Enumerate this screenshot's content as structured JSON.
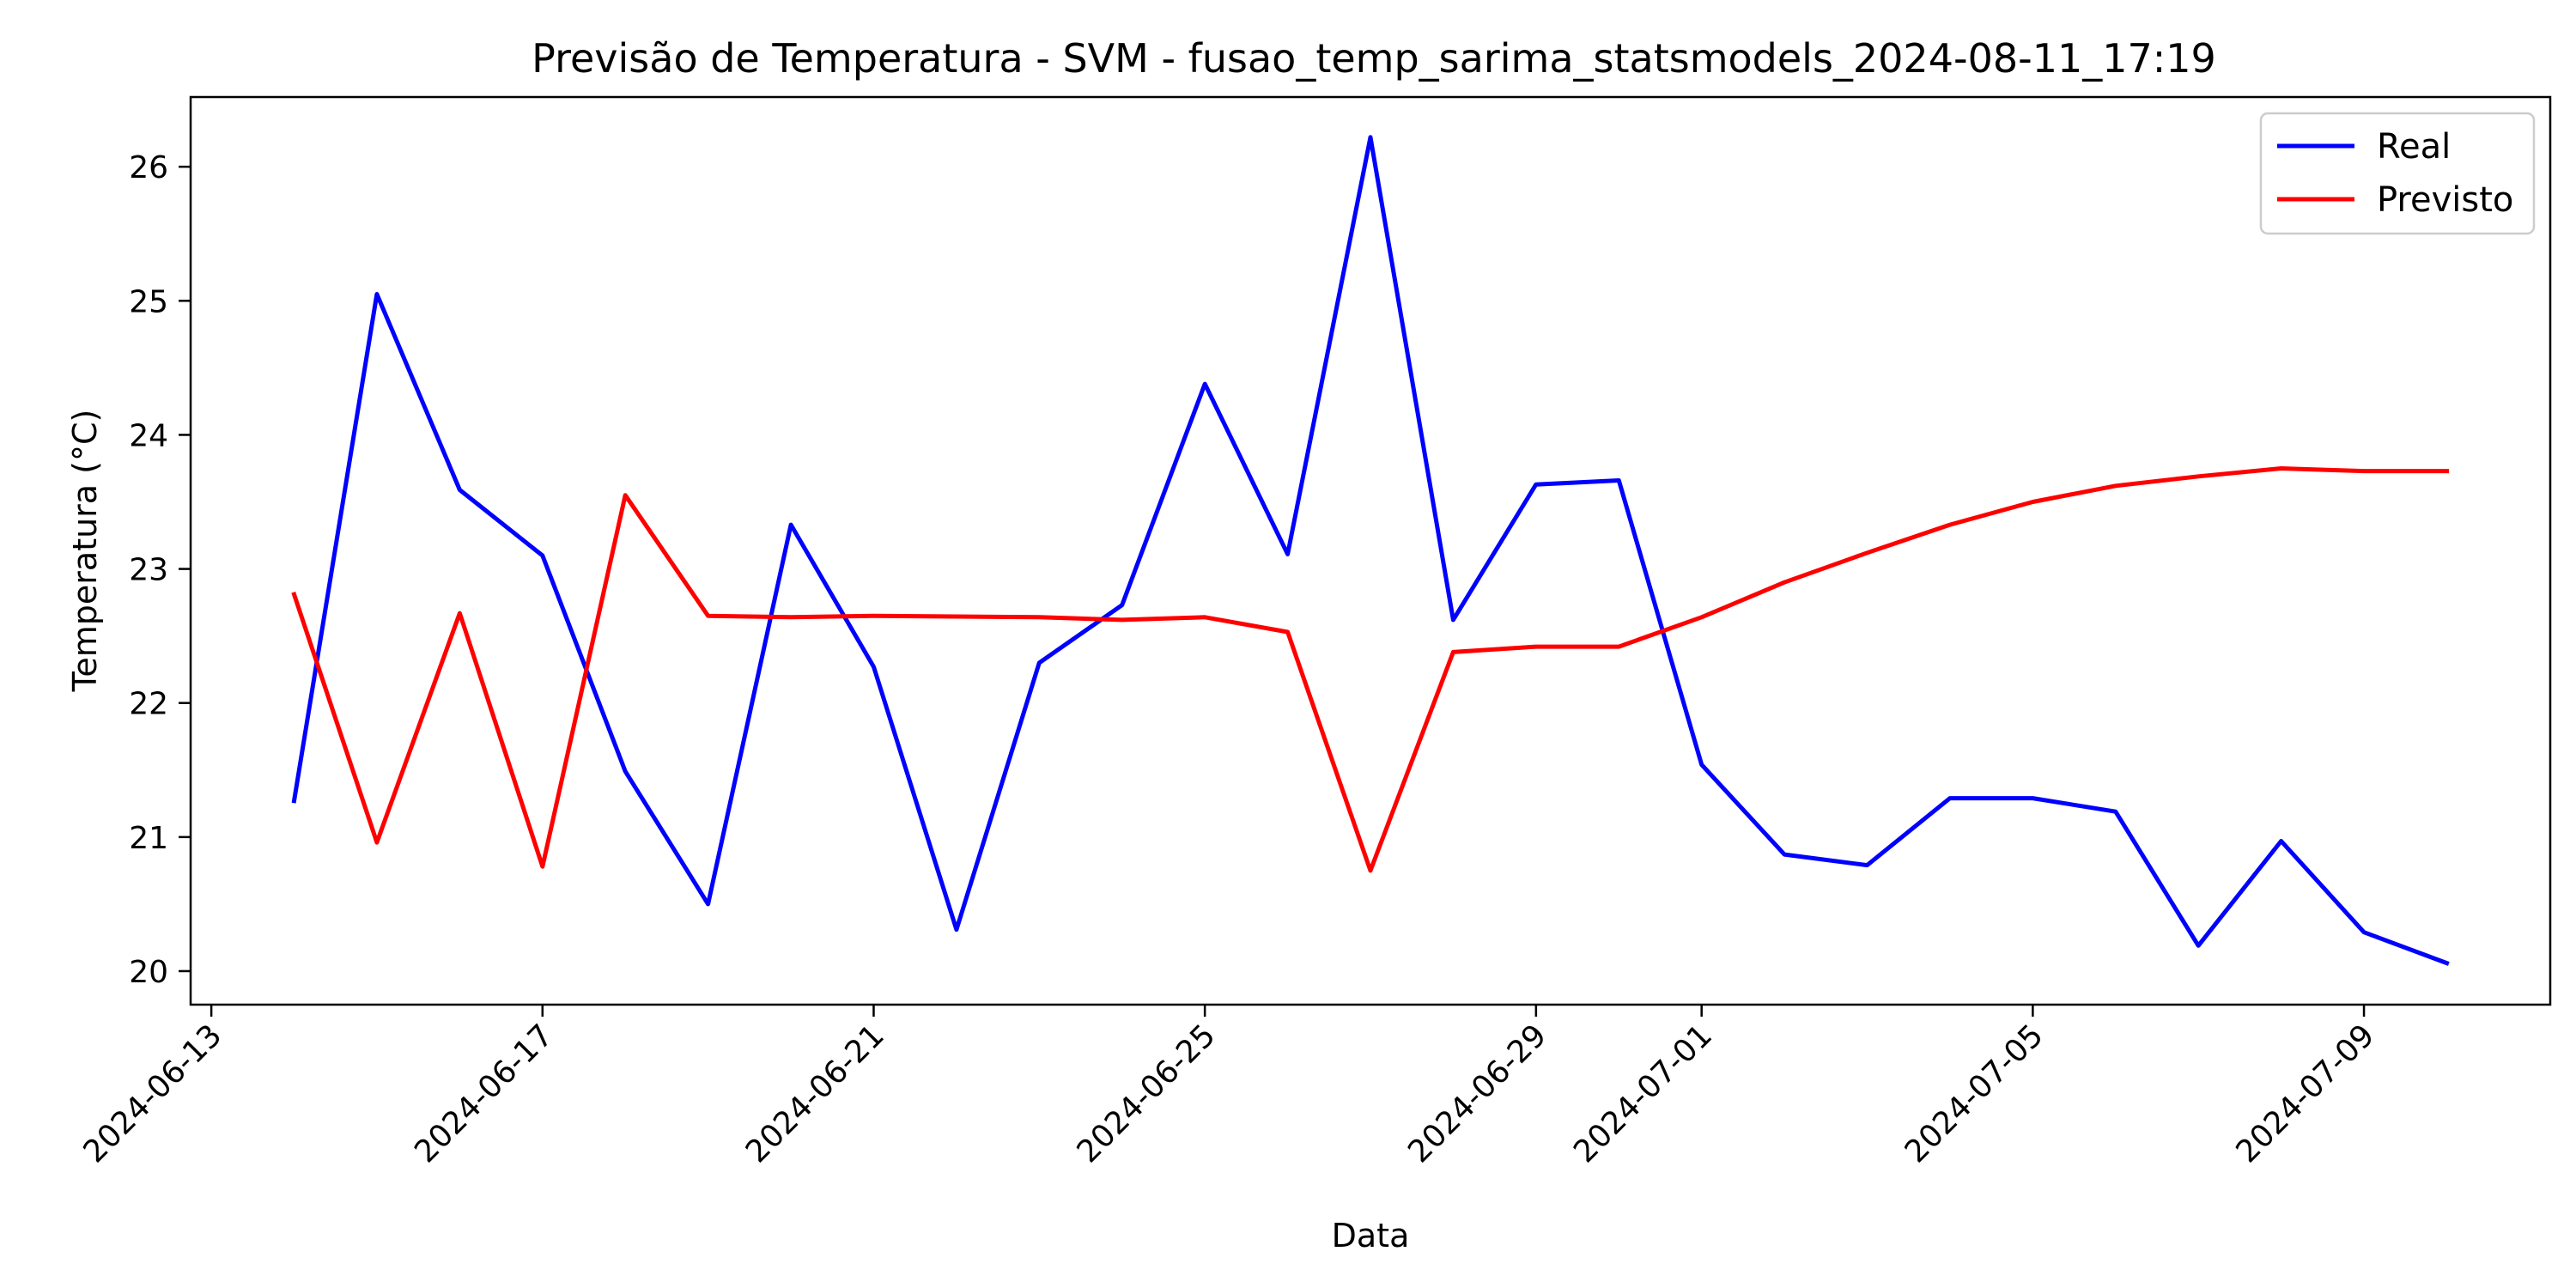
{
  "chart_data": {
    "type": "line",
    "title": "Previsão de Temperatura - SVM - fusao_temp_sarima_statsmodels_2024-08-11_17:19",
    "xlabel": "Data",
    "ylabel": "Temperatura (°C)",
    "x": [
      "2024-06-14",
      "2024-06-15",
      "2024-06-16",
      "2024-06-17",
      "2024-06-18",
      "2024-06-19",
      "2024-06-20",
      "2024-06-21",
      "2024-06-22",
      "2024-06-23",
      "2024-06-24",
      "2024-06-25",
      "2024-06-26",
      "2024-06-27",
      "2024-06-28",
      "2024-06-29",
      "2024-06-30",
      "2024-07-01",
      "2024-07-02",
      "2024-07-03",
      "2024-07-04",
      "2024-07-05",
      "2024-07-06",
      "2024-07-07",
      "2024-07-08",
      "2024-07-09",
      "2024-07-10"
    ],
    "series": [
      {
        "name": "Real",
        "color": "#0000ff",
        "values": [
          21.27,
          25.05,
          23.59,
          23.1,
          21.49,
          20.5,
          23.33,
          22.27,
          20.31,
          22.3,
          22.73,
          24.38,
          23.11,
          26.22,
          22.62,
          23.63,
          23.66,
          21.54,
          20.87,
          20.79,
          21.29,
          21.29,
          21.19,
          20.19,
          20.97,
          20.29,
          20.06
        ]
      },
      {
        "name": "Previsto",
        "color": "#ff0000",
        "values": [
          22.81,
          20.96,
          22.67,
          20.78,
          23.55,
          22.65,
          22.64,
          22.65,
          22.645,
          22.64,
          22.62,
          22.64,
          22.53,
          20.75,
          22.38,
          22.42,
          22.42,
          22.64,
          22.9,
          23.12,
          23.33,
          23.5,
          23.62,
          23.69,
          23.75,
          23.73,
          23.73
        ]
      }
    ],
    "xticks": [
      "2024-06-13",
      "2024-06-17",
      "2024-06-21",
      "2024-06-25",
      "2024-06-29",
      "2024-07-01",
      "2024-07-05",
      "2024-07-09"
    ],
    "yticks": [
      20,
      21,
      22,
      23,
      24,
      25,
      26
    ],
    "xlim": [
      "2024-06-12T18:00",
      "2024-07-11T06:00"
    ],
    "ylim": [
      19.75,
      26.52
    ],
    "grid": false,
    "legend": "top-right"
  }
}
